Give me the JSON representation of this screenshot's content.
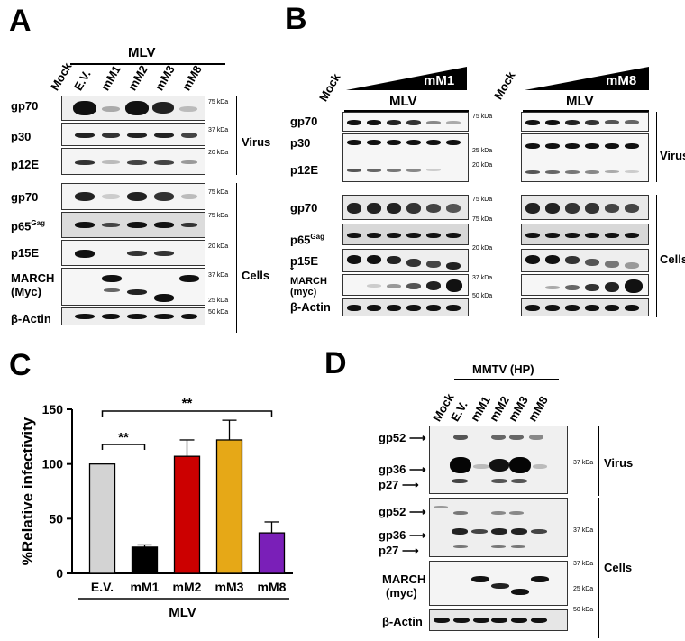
{
  "panels": {
    "A": {
      "letter": "A",
      "header": "MLV",
      "lanes": [
        "Mock",
        "E.V.",
        "mM1",
        "mM2",
        "mM3",
        "mM8"
      ],
      "rows": [
        {
          "label": "gp70",
          "marker": "75 kDa"
        },
        {
          "label": "p30",
          "marker": "37 kDa"
        },
        {
          "label": "p12E",
          "marker": "20 kDa"
        },
        {
          "label": "gp70",
          "marker": "75 kDa"
        },
        {
          "label": "p65",
          "label_sup": "Gag",
          "marker": "75 kDa"
        },
        {
          "label": "p15E",
          "marker": "20 kDa"
        },
        {
          "label": "MARCH",
          "label2": "(Myc)",
          "marker": "37 kDa",
          "marker2": "25 kDa"
        },
        {
          "label": "β-Actin",
          "marker": "50 kDa"
        }
      ],
      "groups": [
        "Virus",
        "Cells"
      ]
    },
    "B": {
      "letter": "B",
      "left_mock": "Mock",
      "left_gradient": "mM1",
      "left_header": "MLV",
      "right_mock": "Mock",
      "right_gradient": "mM8",
      "right_header": "MLV",
      "rows": [
        {
          "label": "gp70",
          "marker": "75 kDa"
        },
        {
          "label": "p30",
          "marker": "25 kDa"
        },
        {
          "label": "p12E",
          "marker": "20 kDa"
        },
        {
          "label": "gp70",
          "marker": "75 kDa"
        },
        {
          "label": "p65",
          "label_sup": "Gag",
          "marker": "75 kDa"
        },
        {
          "label": "p15E",
          "label2": "*",
          "marker": "20 kDa"
        },
        {
          "label": "MARCH",
          "label2": "(myc)",
          "marker": "37 kDa",
          "marker2": "50 kDa"
        },
        {
          "label": "β-Actin"
        }
      ],
      "groups": [
        "Virus",
        "Cells"
      ]
    },
    "C": {
      "letter": "C",
      "group_label": "MLV",
      "sig1": "**",
      "sig2": "**"
    },
    "D": {
      "letter": "D",
      "header": "MMTV (HP)",
      "lanes": [
        "Mock",
        "E.V.",
        "mM1",
        "mM2",
        "mM3",
        "mM8"
      ],
      "rows": [
        {
          "label": "gp52"
        },
        {
          "label": "gp36",
          "marker": "37 kDa"
        },
        {
          "label": "p27"
        },
        {
          "label": "gp52"
        },
        {
          "label": "gp36",
          "marker": "37 kDa"
        },
        {
          "label": "p27"
        },
        {
          "label": "MARCH",
          "label2": "(myc)",
          "marker": "37 kDa",
          "marker2": "25 kDa"
        },
        {
          "label": "β-Actin",
          "marker": "50 kDa"
        }
      ],
      "groups": [
        "Virus",
        "Cells"
      ]
    }
  },
  "chart_data": {
    "type": "bar",
    "categories": [
      "E.V.",
      "mM1",
      "mM2",
      "mM3",
      "mM8"
    ],
    "values": [
      100,
      24,
      107,
      122,
      37
    ],
    "errors": [
      0,
      2,
      15,
      18,
      10
    ],
    "colors": [
      "#d3d3d3",
      "#000000",
      "#cc0000",
      "#e6a817",
      "#7a1fb8"
    ],
    "ylabel": "%Relative infectivity",
    "xlabel": "MLV",
    "ylim": [
      0,
      150
    ],
    "yticks": [
      0,
      50,
      100,
      150
    ]
  }
}
